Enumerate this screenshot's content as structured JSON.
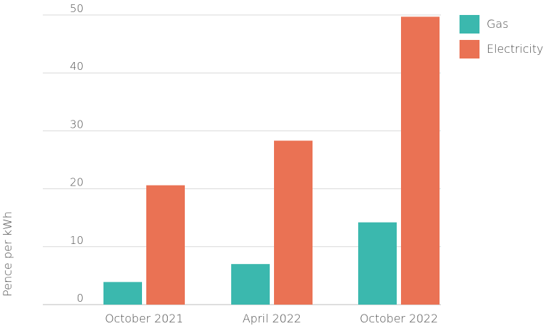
{
  "chart_data": {
    "type": "bar",
    "title": "",
    "xlabel": "",
    "ylabel": "Pence per kWh",
    "ylim": [
      0,
      50
    ],
    "yticks": [
      0,
      10,
      20,
      30,
      40,
      50
    ],
    "grid": true,
    "legend_position": "top-right",
    "categories": [
      "October 2021",
      "April 2022",
      "October 2022"
    ],
    "series": [
      {
        "name": "Gas",
        "color": "#3bb8ae",
        "values": [
          3.9,
          7.0,
          14.2
        ]
      },
      {
        "name": "Electricity",
        "color": "#ea7254",
        "values": [
          20.6,
          28.3,
          49.7
        ]
      }
    ]
  }
}
